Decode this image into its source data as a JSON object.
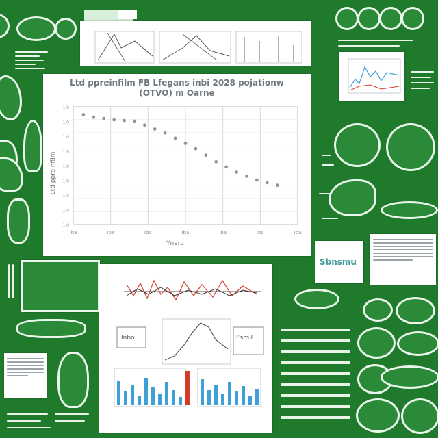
{
  "main_chart": {
    "title_line1": "Ltd ppreinfilm FB Lfegans inbi 2028 pojationw",
    "title_line2": "(OTVO) m Oarne",
    "ylabel": "Ltd ppreinfilm",
    "xlabel": "Ynaro",
    "x_tick_labels": [
      "Iba",
      "Iba",
      "Iba",
      "Iba",
      "Iba",
      "Iba",
      "Iba"
    ],
    "y_tick_labels": [
      "1.0",
      "1.0",
      "1.0",
      "1.0",
      "1.0",
      "1.0",
      "1.0",
      "1.0",
      "1.0"
    ]
  },
  "chart_data": {
    "type": "scatter",
    "title": "Ltd ppreinfilm FB Lfegans inbi 2028 pojationw (OTVO) m Oarne",
    "xlabel": "Ynaro",
    "ylabel": "Ltd ppreinfilm",
    "x": [
      1,
      2,
      3,
      4,
      5,
      6,
      7,
      8,
      9,
      10,
      11,
      12,
      13,
      14,
      15,
      16,
      17,
      18,
      19,
      20
    ],
    "y": [
      8.4,
      8.2,
      8.1,
      8.0,
      7.95,
      7.9,
      7.6,
      7.3,
      7.0,
      6.6,
      6.2,
      5.8,
      5.3,
      4.8,
      4.4,
      4.0,
      3.7,
      3.4,
      3.2,
      3.0
    ],
    "xlim": [
      0,
      22
    ],
    "ylim": [
      0,
      9
    ],
    "grid": true,
    "color": "#8f969b"
  },
  "small_labels": {
    "box_left": "Inbo",
    "box_right": "Esmil",
    "teal_box": "Sbnsmu"
  },
  "colors": {
    "background": "#1f7a2c",
    "light": "#eaf6ec",
    "bar_blue": "#3ea0d6",
    "accent_red": "#d43b2a"
  }
}
